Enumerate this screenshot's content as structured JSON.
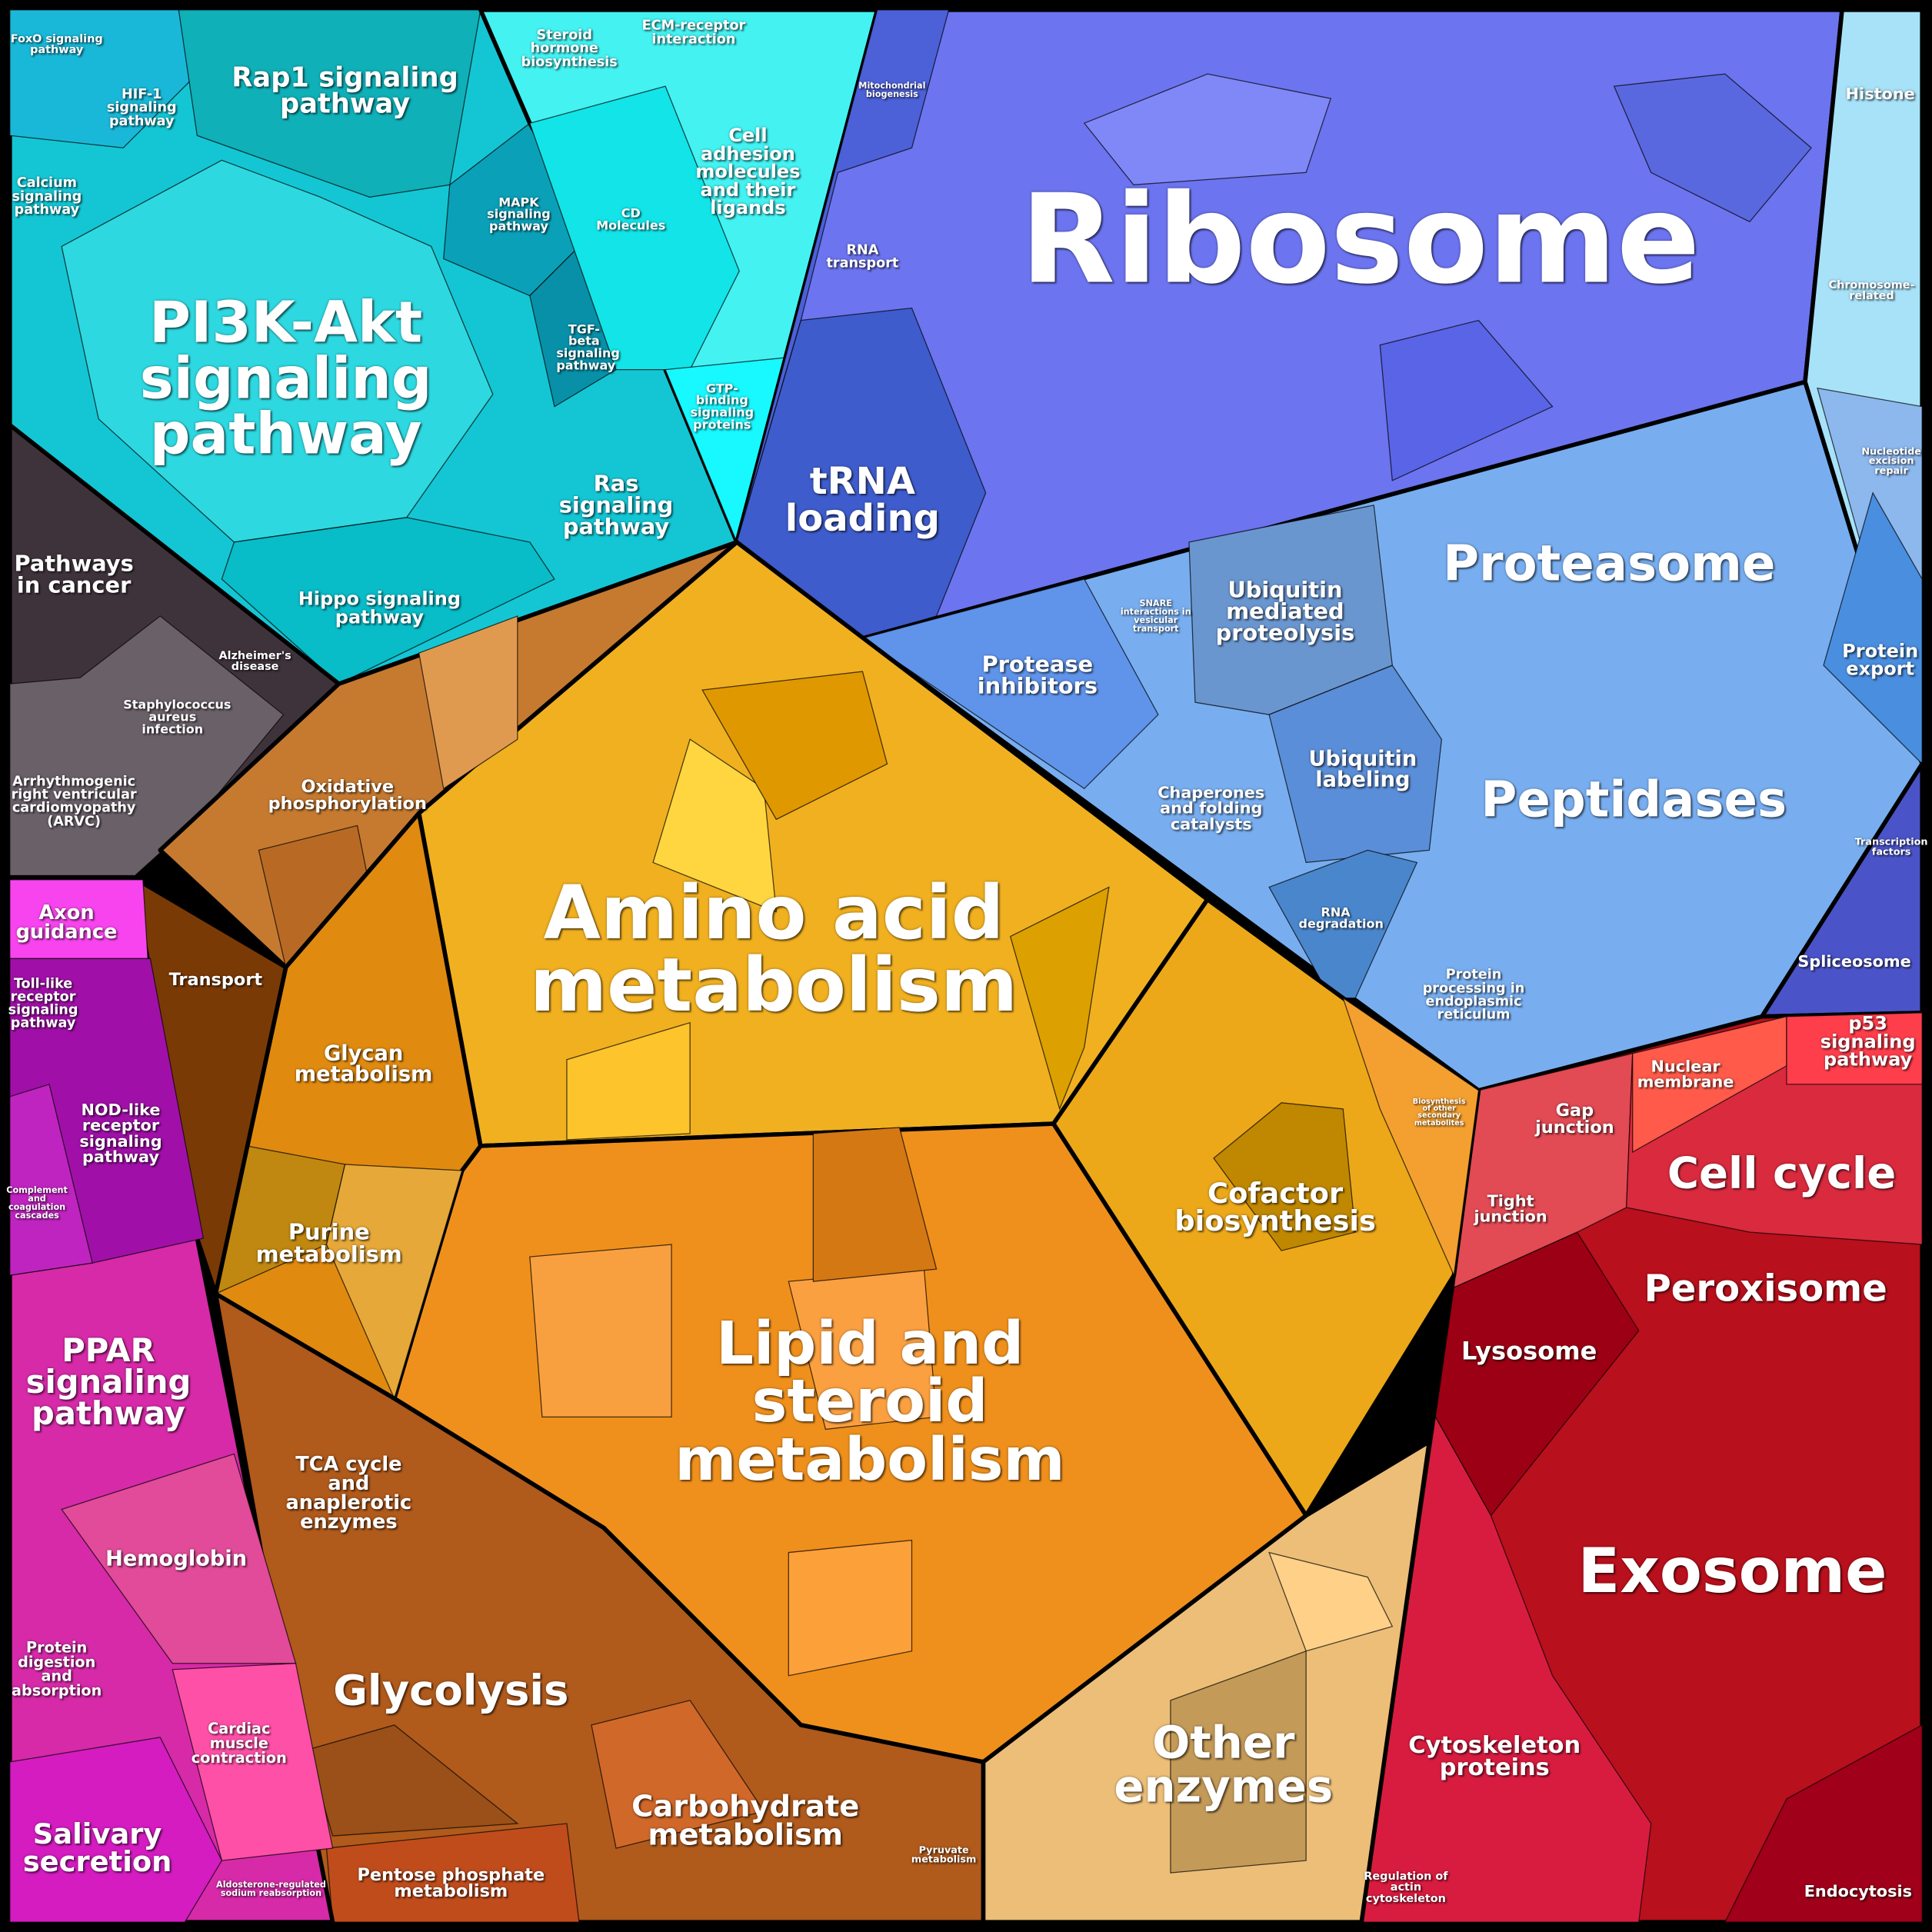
{
  "regions": [
    {
      "label": "FoxO signaling pathway"
    },
    {
      "label": "HIF-1 signaling pathway"
    },
    {
      "label": "Rap1 signaling pathway"
    },
    {
      "label": "Steroid hormone biosynthesis"
    },
    {
      "label": "ECM-receptor interaction"
    },
    {
      "label": "Calcium signaling pathway"
    },
    {
      "label": "MAPK signaling pathway"
    },
    {
      "label": "CD Molecules"
    },
    {
      "label": "Cell adhesion molecules and their ligands"
    },
    {
      "label": "PI3K-Akt signaling pathway"
    },
    {
      "label": "TGF-beta signaling pathway"
    },
    {
      "label": "GTP-binding signaling proteins"
    },
    {
      "label": "Ras signaling pathway"
    },
    {
      "label": "Hippo signaling pathway"
    },
    {
      "label": "Pathways in cancer"
    },
    {
      "label": "Alzheimer's disease"
    },
    {
      "label": "Staphylococcus aureus infection"
    },
    {
      "label": "Arrhythmogenic right ventricular cardiomyopathy (ARVC)"
    },
    {
      "label": "Mitochondrial biogenesis"
    },
    {
      "label": "RNA transport"
    },
    {
      "label": "Ribosome"
    },
    {
      "label": "tRNA loading"
    },
    {
      "label": "Histone"
    },
    {
      "label": "Chromosome-related"
    },
    {
      "label": "Nucleotide excision repair"
    },
    {
      "label": "Proteasome"
    },
    {
      "label": "Protease inhibitors"
    },
    {
      "label": "SNARE interactions in vesicular transport"
    },
    {
      "label": "Ubiquitin mediated proteolysis"
    },
    {
      "label": "Protein export"
    },
    {
      "label": "Chaperones and folding catalysts"
    },
    {
      "label": "Ubiquitin labeling"
    },
    {
      "label": "Peptidases"
    },
    {
      "label": "Transcription factors"
    },
    {
      "label": "RNA degradation"
    },
    {
      "label": "Spliceosome"
    },
    {
      "label": "Protein processing in endoplasmic reticulum"
    },
    {
      "label": "Amino acid metabolism"
    },
    {
      "label": "Oxidative phosphorylation"
    },
    {
      "label": "Transport"
    },
    {
      "label": "Glycan metabolism"
    },
    {
      "label": "Purine metabolism"
    },
    {
      "label": "Cofactor biosynthesis"
    },
    {
      "label": "Biosynthesis of other secondary metabolites"
    },
    {
      "label": "Lipid and steroid metabolism"
    },
    {
      "label": "TCA cycle and anaplerotic enzymes"
    },
    {
      "label": "Glycolysis"
    },
    {
      "label": "Carbohydrate metabolism"
    },
    {
      "label": "Pyruvate metabolism"
    },
    {
      "label": "Pentose phosphate metabolism"
    },
    {
      "label": "Other enzymes"
    },
    {
      "label": "Axon guidance"
    },
    {
      "label": "Toll-like receptor signaling pathway"
    },
    {
      "label": "NOD-like receptor signaling pathway"
    },
    {
      "label": "Complement and coagulation cascades"
    },
    {
      "label": "PPAR signaling pathway"
    },
    {
      "label": "Hemoglobin"
    },
    {
      "label": "Protein digestion and absorption"
    },
    {
      "label": "Cardiac muscle contraction"
    },
    {
      "label": "Salivary secretion"
    },
    {
      "label": "Aldosterone-regulated sodium reabsorption"
    },
    {
      "label": "Gap junction"
    },
    {
      "label": "Nuclear membrane"
    },
    {
      "label": "p53 signaling pathway"
    },
    {
      "label": "Cell cycle"
    },
    {
      "label": "Tight junction"
    },
    {
      "label": "Peroxisome"
    },
    {
      "label": "Lysosome"
    },
    {
      "label": "Exosome"
    },
    {
      "label": "Cytoskeleton proteins"
    },
    {
      "label": "Regulation of actin cytoskeleton"
    },
    {
      "label": "Endocytosis"
    }
  ]
}
